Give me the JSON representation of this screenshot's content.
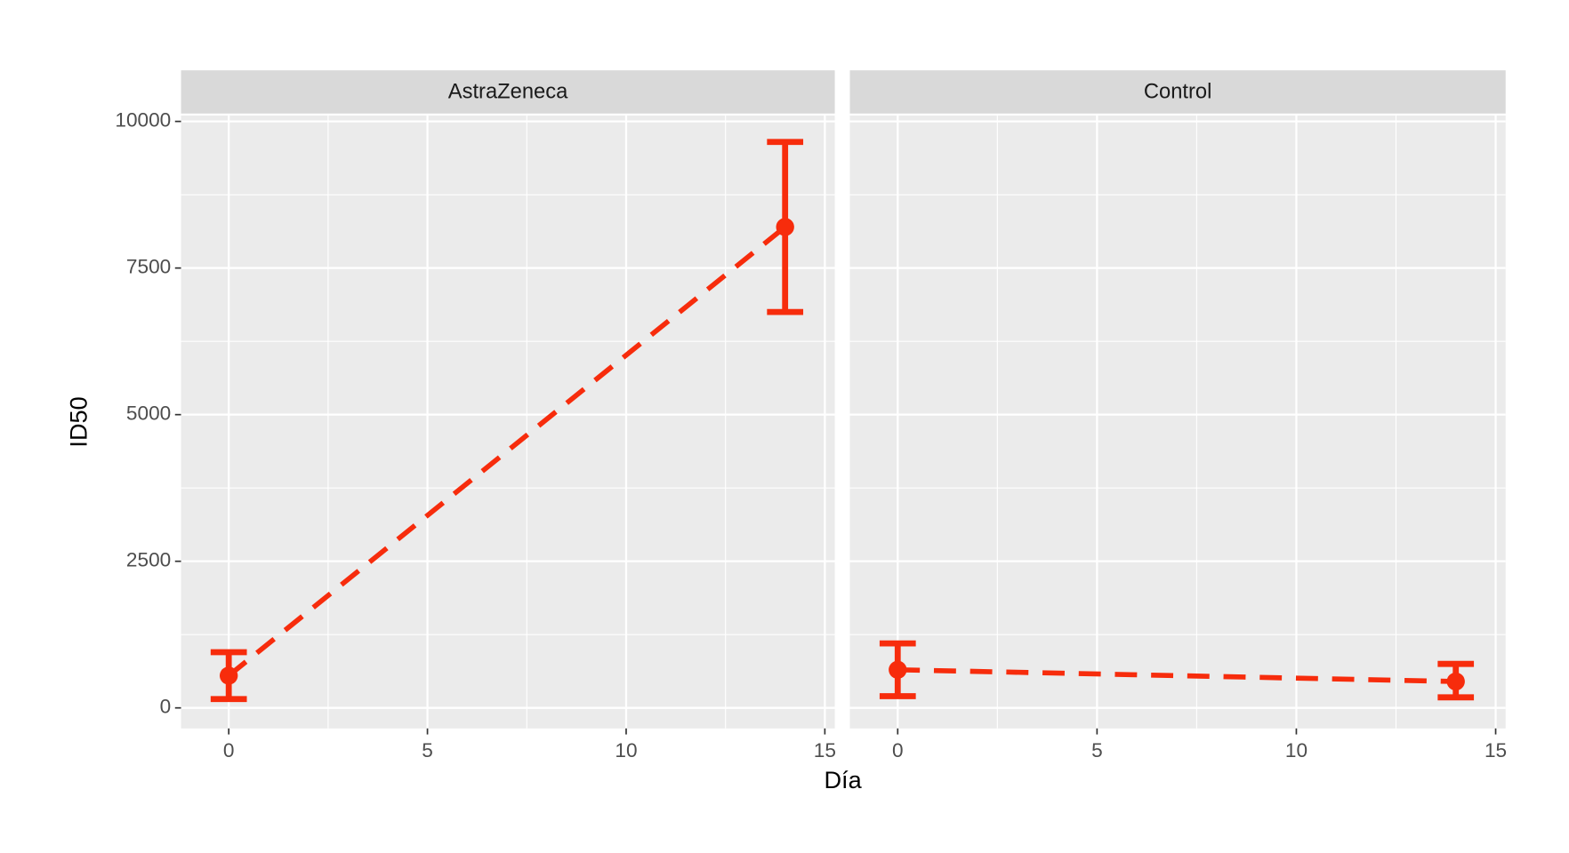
{
  "chart_data": [
    {
      "type": "line",
      "title": "AstraZeneca",
      "x_label": "Día",
      "y_label": "ID50",
      "x": [
        0,
        14
      ],
      "series": [
        {
          "color": "#f72c0c",
          "values": [
            550,
            8200
          ],
          "lower": [
            150,
            6750
          ],
          "upper": [
            950,
            9650
          ]
        }
      ],
      "xlim": [
        -1.2,
        15.25
      ],
      "xticks": [
        0,
        5,
        10,
        15
      ],
      "x_minor_ticks": [
        2.5,
        7.5,
        12.5
      ],
      "ylim": [
        -350,
        10100
      ],
      "yticks": [
        0,
        2500,
        5000,
        7500,
        10000
      ],
      "y_minor_ticks": [
        1250,
        3750,
        6250,
        8750
      ],
      "grid": true
    },
    {
      "type": "line",
      "title": "Control",
      "x": [
        0,
        14
      ],
      "series": [
        {
          "color": "#f72c0c",
          "values": [
            650,
            450
          ],
          "lower": [
            200,
            180
          ],
          "upper": [
            1100,
            750
          ]
        }
      ],
      "xlim": [
        -1.2,
        15.25
      ],
      "xticks": [
        0,
        5,
        10,
        15
      ],
      "x_minor_ticks": [
        2.5,
        7.5,
        12.5
      ],
      "ylim": [
        -350,
        10100
      ],
      "yticks": [
        0,
        2500,
        5000,
        7500,
        10000
      ],
      "y_minor_ticks": [
        1250,
        3750,
        6250,
        8750
      ],
      "grid": true
    }
  ]
}
